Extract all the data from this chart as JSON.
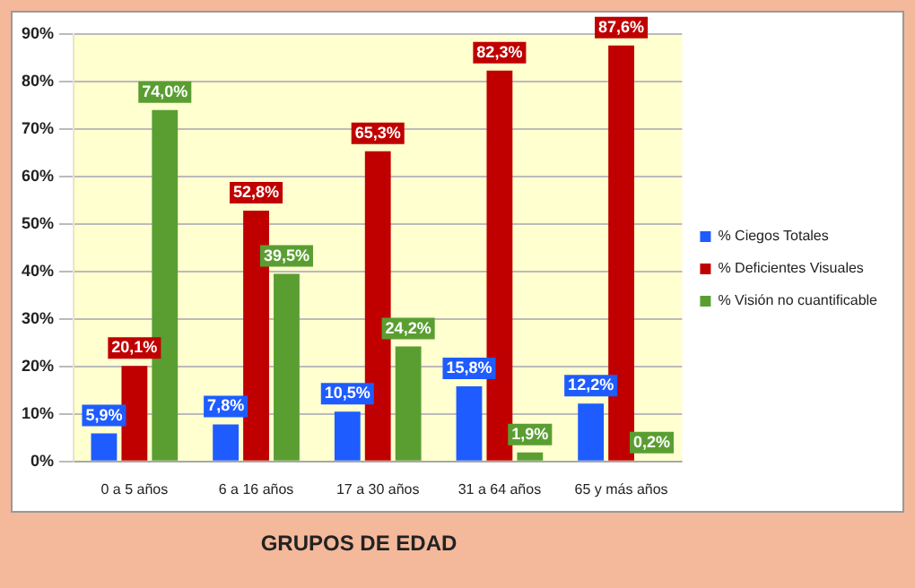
{
  "chart_data": {
    "type": "bar",
    "xlabel": "GRUPOS DE EDAD",
    "categories": [
      "0 a 5 años",
      "6 a 16 años",
      "17 a 30 años",
      "31 a 64 años",
      "65 y más años"
    ],
    "series": [
      {
        "name": "% Ciegos Totales",
        "color": "#1f5cff",
        "values": [
          5.9,
          7.8,
          10.5,
          15.8,
          12.2
        ],
        "value_labels": [
          "5,9%",
          "7,8%",
          "10,5%",
          "15,8%",
          "12,2%"
        ]
      },
      {
        "name": "% Deficientes Visuales",
        "color": "#c00000",
        "values": [
          20.1,
          52.8,
          65.3,
          82.3,
          87.6
        ],
        "value_labels": [
          "20,1%",
          "52,8%",
          "65,3%",
          "82,3%",
          "87,6%"
        ]
      },
      {
        "name": "% Visión no cuantificable",
        "color": "#5a9e32",
        "values": [
          74.0,
          39.5,
          24.2,
          1.9,
          0.2
        ],
        "value_labels": [
          "74,0%",
          "39,5%",
          "24,2%",
          "1,9%",
          "0,2%"
        ]
      }
    ],
    "ylim": [
      0,
      90
    ],
    "yticks": [
      {
        "value": 0,
        "label": "0%"
      },
      {
        "value": 10,
        "label": "10%"
      },
      {
        "value": 20,
        "label": "20%"
      },
      {
        "value": 30,
        "label": "30%"
      },
      {
        "value": 40,
        "label": "40%"
      },
      {
        "value": 50,
        "label": "50%"
      },
      {
        "value": 60,
        "label": "60%"
      },
      {
        "value": 70,
        "label": "70%"
      },
      {
        "value": 80,
        "label": "80%"
      },
      {
        "value": 90,
        "label": "90%"
      }
    ],
    "grid": "y",
    "legend": "right"
  }
}
